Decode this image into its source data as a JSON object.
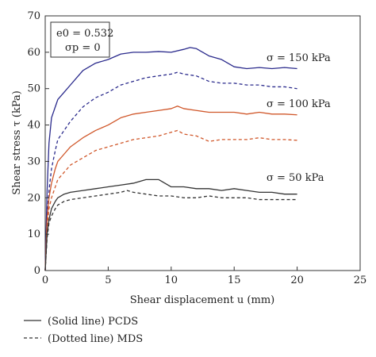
{
  "chart_data": {
    "type": "line",
    "xlabel": "Shear displacement u (mm)",
    "ylabel": "Shear stress τ (kPa)",
    "xlim": [
      0,
      25
    ],
    "ylim": [
      0,
      70
    ],
    "xticks": [
      0,
      5,
      10,
      15,
      20,
      25
    ],
    "yticks": [
      0,
      10,
      20,
      30,
      40,
      50,
      60,
      70
    ],
    "grid": false,
    "info_box": {
      "line1": "e0 = 0.532",
      "line2": "σp = 0"
    },
    "annotations": [
      "σ = 150 kPa",
      "σ = 100 kPa",
      "σ = 50 kPa"
    ],
    "legend": {
      "placement": "bottom-left, below plot",
      "solid": "(Solid line) PCDS",
      "dotted": "(Dotted line) MDS"
    },
    "series": [
      {
        "group": "σ = 150 kPa",
        "style": "solid",
        "color": "#2a2a8c",
        "x": [
          0,
          0.15,
          0.3,
          0.5,
          0.8,
          1.0,
          1.5,
          2.0,
          2.5,
          3,
          4,
          5,
          6,
          7,
          8,
          9,
          10,
          11,
          11.5,
          12,
          13,
          14,
          15,
          16,
          17,
          18,
          19,
          20
        ],
        "y": [
          0,
          22,
          35,
          42,
          45,
          47,
          49,
          51,
          53,
          55,
          57,
          58,
          59.5,
          60,
          60,
          60.2,
          60,
          60.8,
          61.3,
          61,
          59,
          58,
          56,
          55.5,
          55.8,
          55.5,
          55.8,
          55.5
        ]
      },
      {
        "group": "σ = 150 kPa",
        "style": "dotted",
        "color": "#2a2a8c",
        "x": [
          0,
          0.15,
          0.3,
          0.5,
          0.8,
          1.0,
          1.5,
          2.0,
          2.5,
          3,
          4,
          5,
          6,
          7,
          8,
          9,
          10,
          10.5,
          11,
          12,
          13,
          14,
          15,
          16,
          17,
          18,
          19,
          20
        ],
        "y": [
          0,
          15,
          22,
          28,
          33,
          36,
          38.5,
          41,
          43,
          45,
          47.5,
          49,
          51,
          52,
          53,
          53.5,
          54,
          54.5,
          54,
          53.5,
          52,
          51.5,
          51.5,
          51,
          51,
          50.5,
          50.5,
          50
        ]
      },
      {
        "group": "σ = 100 kPa",
        "style": "solid",
        "color": "#d0572a",
        "x": [
          0,
          0.15,
          0.3,
          0.5,
          0.8,
          1.0,
          1.5,
          2.0,
          3,
          4,
          5,
          6,
          7,
          8,
          9,
          10,
          10.5,
          11,
          12,
          13,
          14,
          15,
          16,
          17,
          18,
          19,
          20
        ],
        "y": [
          0,
          14,
          20,
          24,
          28,
          30,
          32,
          34,
          36.5,
          38.5,
          40,
          42,
          43,
          43.5,
          44,
          44.5,
          45.2,
          44.5,
          44,
          43.5,
          43.5,
          43.5,
          43,
          43.5,
          43,
          43,
          42.8
        ]
      },
      {
        "group": "σ = 100 kPa",
        "style": "dotted",
        "color": "#d0572a",
        "x": [
          0,
          0.15,
          0.3,
          0.5,
          0.8,
          1.0,
          1.5,
          2.0,
          3,
          4,
          5,
          6,
          7,
          8,
          9,
          10,
          10.5,
          11,
          12,
          13,
          14,
          15,
          16,
          17,
          18,
          19,
          20
        ],
        "y": [
          0,
          12,
          17,
          20,
          23,
          25,
          27,
          29,
          31,
          33,
          34,
          35,
          36,
          36.5,
          37,
          38,
          38.5,
          37.5,
          37,
          35.5,
          36,
          36,
          36,
          36.5,
          36,
          36,
          35.8
        ]
      },
      {
        "group": "σ = 50 kPa",
        "style": "solid",
        "color": "#333333",
        "x": [
          0,
          0.15,
          0.3,
          0.5,
          0.8,
          1.0,
          1.5,
          2.0,
          3,
          4,
          5,
          6,
          7,
          8,
          9,
          9.5,
          10,
          11,
          12,
          13,
          14,
          15,
          16,
          17,
          18,
          19,
          20
        ],
        "y": [
          0,
          10,
          14,
          17,
          19,
          20,
          21,
          21.5,
          22,
          22.5,
          23,
          23.5,
          24,
          25,
          25,
          24,
          23,
          23,
          22.5,
          22.5,
          22,
          22.5,
          22,
          21.5,
          21.5,
          21,
          21
        ]
      },
      {
        "group": "σ = 50 kPa",
        "style": "dotted",
        "color": "#333333",
        "x": [
          0,
          0.15,
          0.3,
          0.5,
          0.8,
          1.0,
          1.5,
          2.0,
          3,
          4,
          5,
          6,
          6.5,
          7,
          8,
          9,
          10,
          11,
          12,
          13,
          14,
          15,
          16,
          17,
          18,
          19,
          20
        ],
        "y": [
          0,
          9,
          13,
          15,
          17,
          18,
          19,
          19.5,
          20,
          20.5,
          21,
          21.5,
          22,
          21.5,
          21,
          20.5,
          20.5,
          20,
          20,
          20.5,
          20,
          20,
          20,
          19.5,
          19.5,
          19.5,
          19.5
        ]
      }
    ]
  }
}
